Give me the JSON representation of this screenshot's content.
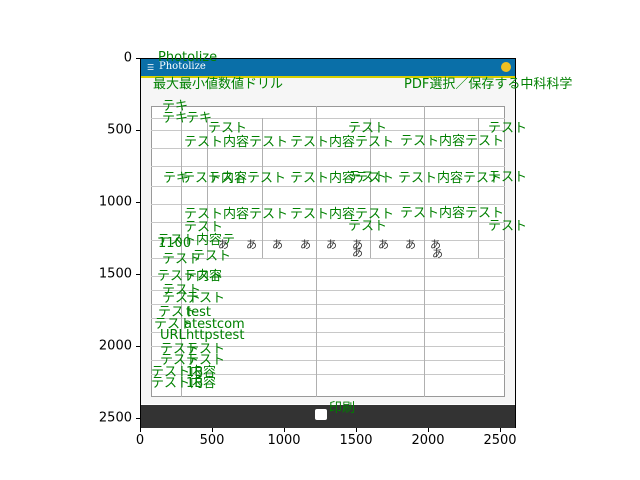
{
  "window_title": "Photolize",
  "app_bar": {
    "title": "Photolize",
    "menu_icon": "hamburger-icon",
    "profile_icon": "user-avatar-icon"
  },
  "axes": {
    "x_ticks": [
      "0",
      "500",
      "1000",
      "1500",
      "2000",
      "2500"
    ],
    "y_ticks": [
      "0",
      "500",
      "1000",
      "1500",
      "2000",
      "2500"
    ]
  },
  "header": {
    "left": "最大最小値数値ドリル",
    "right": "PDF選択／保存する中科科学"
  },
  "labels": {
    "r1": "テキ",
    "r2a": "テキ",
    "r2b": "テキ",
    "r3a": "テスト",
    "r3b": "テスト",
    "r3c": "テスト",
    "r4a": "テスト内容テスト",
    "r4b": "テスト内容テスト",
    "r4c": "テスト内容テスト",
    "r5a": "テキ",
    "r5b": "テスト内容テスト",
    "r5c": "テスト",
    "r5d": "テスト内容テスト",
    "r5e": "テスト",
    "r5f": "テスト内容テスト",
    "r5g": "テスト",
    "r6a": "テスト内容テスト",
    "r6b": "テスト内容テスト",
    "r6c": "テスト内容テスト",
    "r7a": "テスト",
    "r7b": "テスト",
    "r7c": "テスト",
    "r8a": "テスト内容テ",
    "r8b": "1100",
    "r8c": "テスト",
    "r9a": "テスト",
    "r10a": "テスト内容",
    "r10b": "テスト",
    "r11a": "テスト",
    "r12a": "テスト",
    "r12b": "テスト",
    "r13a": "テスト",
    "r13b": "test",
    "r14a": "テスト",
    "r14b": "atestcom",
    "r15a": "URL",
    "r15b": "httpstest",
    "r16a": "テスト",
    "r16b": "テスト",
    "r17a": "テスト",
    "r17b": "テスト",
    "r18a": "テスト内容",
    "r18b": "1B",
    "r19a": "テスト内容",
    "r19b": "1B"
  },
  "glyphs": [
    "あ",
    "あ",
    "あ",
    "あ",
    "あ",
    "あ",
    "あ",
    "あ",
    "あ",
    "あ",
    "あ"
  ],
  "footer": {
    "print_label": "印刷",
    "print_icon": "printer-icon"
  }
}
